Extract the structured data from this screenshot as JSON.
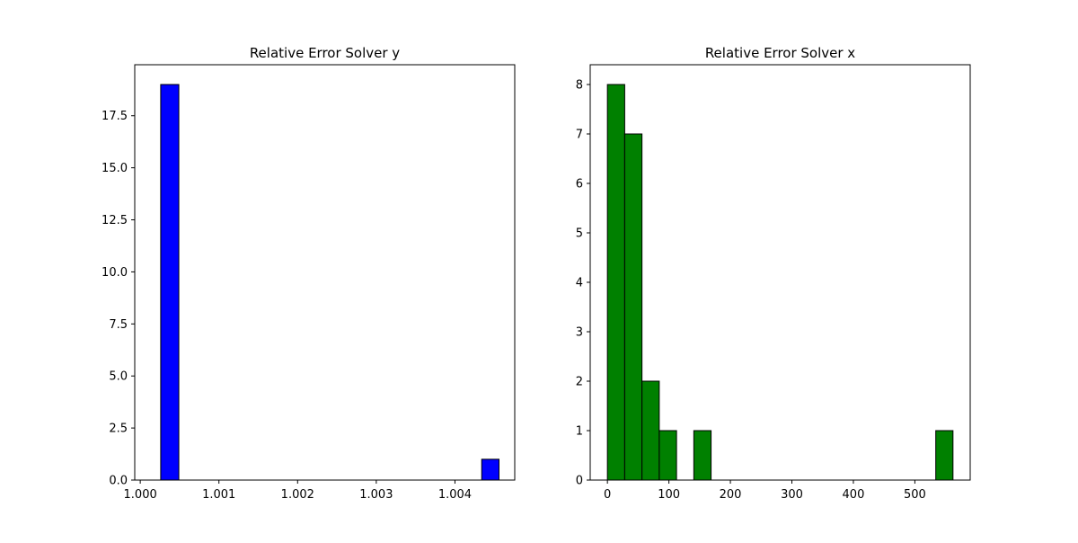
{
  "chart_data": [
    {
      "type": "bar",
      "title": "Relative Error Solver y",
      "xlabel": "",
      "ylabel": "",
      "bar_color": "#0000ff",
      "edge_color": "#000000",
      "xlim": [
        0.99993,
        1.00476
      ],
      "ylim": [
        0,
        19.95
      ],
      "xticks": [
        1.0,
        1.001,
        1.002,
        1.003,
        1.004
      ],
      "xtick_labels": [
        "1.000",
        "1.001",
        "1.002",
        "1.003",
        "1.004"
      ],
      "yticks": [
        0,
        2.5,
        5,
        7.5,
        10,
        12.5,
        15,
        17.5
      ],
      "ytick_labels": [
        "0.0",
        "2.5",
        "5.0",
        "7.5",
        "10.0",
        "12.5",
        "15.0",
        "17.5"
      ],
      "bin_edges": [
        1.00026,
        1.00049,
        1.00071,
        1.00094,
        1.00117,
        1.00139,
        1.00162,
        1.00185,
        1.00207,
        1.0023,
        1.00253,
        1.00275,
        1.00298,
        1.00321,
        1.00343,
        1.00366,
        1.00389,
        1.00411,
        1.00434,
        1.00456
      ],
      "bins": [
        {
          "x0": 1.00026,
          "x1": 1.00049,
          "count": 19
        },
        {
          "x0": 1.00434,
          "x1": 1.00456,
          "count": 1
        }
      ]
    },
    {
      "type": "bar",
      "title": "Relative Error Solver x",
      "xlabel": "",
      "ylabel": "",
      "bar_color": "#008000",
      "edge_color": "#000000",
      "xlim": [
        -28,
        590
      ],
      "ylim": [
        0,
        8.4
      ],
      "xticks": [
        0,
        100,
        200,
        300,
        400,
        500
      ],
      "xtick_labels": [
        "0",
        "100",
        "200",
        "300",
        "400",
        "500"
      ],
      "yticks": [
        0,
        1,
        2,
        3,
        4,
        5,
        6,
        7,
        8
      ],
      "ytick_labels": [
        "0",
        "1",
        "2",
        "3",
        "4",
        "5",
        "6",
        "7",
        "8"
      ],
      "bins": [
        {
          "x0": 0,
          "x1": 28.1,
          "count": 8
        },
        {
          "x0": 28.1,
          "x1": 56.2,
          "count": 7
        },
        {
          "x0": 56.2,
          "x1": 84.3,
          "count": 2
        },
        {
          "x0": 84.3,
          "x1": 112.4,
          "count": 1
        },
        {
          "x0": 140.5,
          "x1": 168.6,
          "count": 1
        },
        {
          "x0": 534,
          "x1": 562,
          "count": 1
        }
      ]
    }
  ]
}
